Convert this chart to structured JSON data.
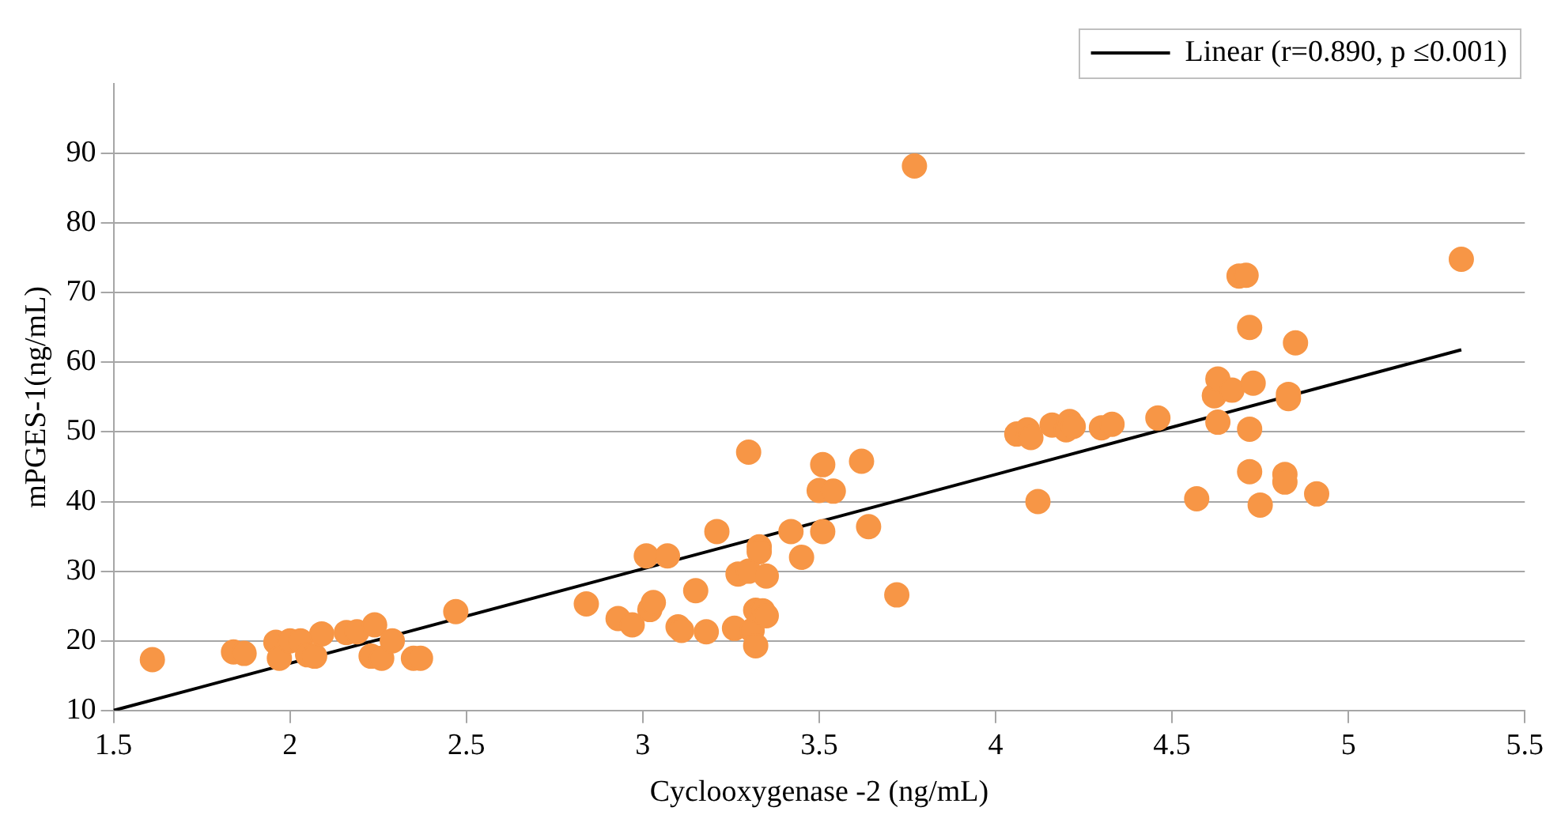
{
  "chart_data": {
    "type": "scatter",
    "xlabel": "Cyclooxygenase -2 (ng/mL)",
    "ylabel": "mPGES-1(ng/mL)",
    "xlim": [
      1.5,
      5.5
    ],
    "xticks": [
      1.5,
      2,
      2.5,
      3,
      3.5,
      4,
      4.5,
      5,
      5.5
    ],
    "ylim": [
      10,
      100
    ],
    "yticks": [
      10,
      20,
      30,
      40,
      50,
      60,
      70,
      80,
      90
    ],
    "grid": "y",
    "legend": "top right",
    "marker": "circle",
    "series": [
      {
        "color": "#f79646",
        "x": [
          1.61,
          1.84,
          1.87,
          1.96,
          1.97,
          2.0,
          2.03,
          2.05,
          2.07,
          2.09,
          2.16,
          2.19,
          2.23,
          2.24,
          2.26,
          2.29,
          2.35,
          2.37,
          2.47,
          2.84,
          2.93,
          2.97,
          3.01,
          3.02,
          3.03,
          3.07,
          3.1,
          3.11,
          3.15,
          3.18,
          3.21,
          3.26,
          3.27,
          3.3,
          3.3,
          3.31,
          3.32,
          3.32,
          3.33,
          3.33,
          3.34,
          3.35,
          3.35,
          3.42,
          3.45,
          3.5,
          3.51,
          3.51,
          3.54,
          3.62,
          3.64,
          3.72,
          3.77,
          4.06,
          4.09,
          4.1,
          4.12,
          4.16,
          4.2,
          4.21,
          4.22,
          4.3,
          4.33,
          4.46,
          4.57,
          4.62,
          4.63,
          4.63,
          4.67,
          4.69,
          4.71,
          4.72,
          4.72,
          4.73,
          4.72,
          4.75,
          4.82,
          4.82,
          4.83,
          4.83,
          4.85,
          4.91,
          5.32
        ],
        "values": [
          17.3,
          18.4,
          18.2,
          19.8,
          17.5,
          20,
          20,
          18,
          17.8,
          21,
          21.2,
          21.3,
          17.8,
          22.3,
          17.5,
          20,
          17.5,
          17.5,
          24.2,
          25.3,
          23.2,
          22.3,
          32.2,
          24.5,
          25.5,
          32.2,
          22,
          21.5,
          27.2,
          21.3,
          35.7,
          21.8,
          29.6,
          47.1,
          30,
          21.5,
          24.4,
          19.3,
          33.5,
          32.8,
          24.3,
          29.3,
          23.6,
          35.7,
          32,
          41.6,
          45.3,
          35.7,
          41.5,
          45.8,
          36.4,
          26.6,
          88.2,
          49.7,
          50.3,
          49.2,
          40,
          51,
          50.3,
          51.5,
          50.8,
          50.6,
          51.1,
          52,
          40.4,
          55.2,
          57.6,
          51.4,
          56,
          72.4,
          72.5,
          65,
          50.4,
          57,
          44.3,
          39.5,
          43.9,
          42.8,
          55.4,
          54.8,
          62.8,
          41.1,
          74.8
        ]
      },
      {
        "type": "line",
        "name": "Linear (r=0.890, p ≤0.001)",
        "color": "#000000",
        "marker": "none",
        "x": [
          1.5,
          5.32
        ],
        "values": [
          10,
          61.8
        ]
      }
    ]
  }
}
